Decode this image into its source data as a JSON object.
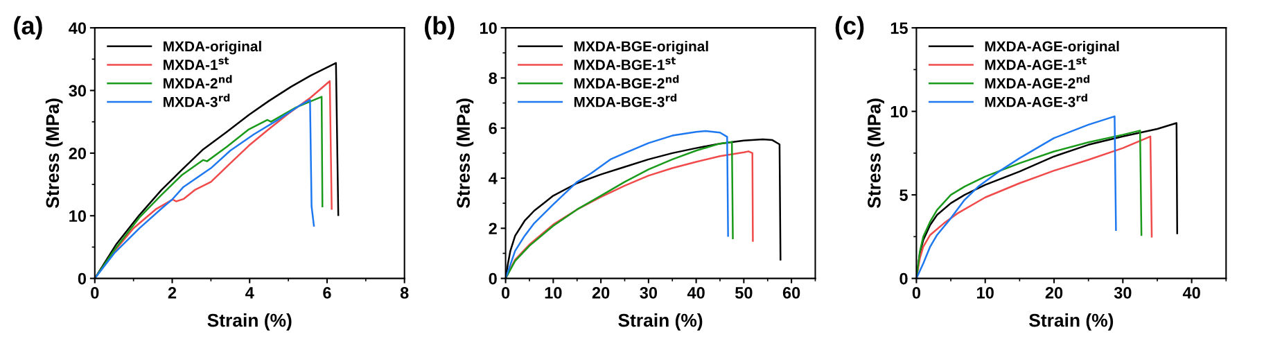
{
  "chart_data": [
    {
      "type": "line",
      "title": "(a)",
      "xlabel": "Strain (%)",
      "ylabel": "Stress (MPa)",
      "xlim": [
        0,
        8
      ],
      "ylim": [
        0,
        40
      ],
      "xticks": [
        0,
        2,
        4,
        6,
        8
      ],
      "yticks": [
        0,
        10,
        20,
        30,
        40
      ],
      "legend": "top left",
      "grid": false,
      "series": [
        {
          "name": "MXDA-original",
          "color": "#000000",
          "x": [
            0,
            0.56,
            1.15,
            1.72,
            2.26,
            2.8,
            3.41,
            3.98,
            4.49,
            5.07,
            5.58,
            6.23,
            6.29
          ],
          "values": [
            0,
            5.5,
            10.1,
            14.1,
            17.4,
            20.6,
            23.4,
            26.1,
            28.3,
            30.6,
            32.4,
            34.4,
            10.1
          ]
        },
        {
          "name": "MXDA-1$^{st}$",
          "color": "#f04a4a",
          "x": [
            0,
            0.5,
            1.0,
            1.59,
            2.01,
            2.1,
            2.3,
            2.58,
            3.0,
            3.47,
            3.98,
            4.49,
            5.0,
            5.58,
            6.07,
            6.12
          ],
          "values": [
            0,
            4.3,
            8.0,
            11.1,
            12.6,
            12.3,
            12.7,
            14.1,
            15.4,
            18.2,
            21.2,
            23.8,
            26.3,
            28.9,
            31.5,
            11.1
          ]
        },
        {
          "name": "MXDA-2$^{nd}$",
          "color": "#1a9a1a",
          "x": [
            0,
            0.5,
            1.15,
            1.7,
            2.25,
            2.8,
            2.9,
            3.41,
            3.98,
            4.46,
            4.55,
            5.2,
            5.86,
            5.88
          ],
          "values": [
            0,
            4.5,
            9.7,
            13.2,
            16.5,
            18.9,
            18.7,
            21.0,
            23.8,
            25.3,
            25.0,
            27.3,
            29.0,
            11.5
          ]
        },
        {
          "name": "MXDA-3$^{rd}$",
          "color": "#1e78f0",
          "x": [
            0,
            0.5,
            1.15,
            1.75,
            2.0,
            2.29,
            3.0,
            3.5,
            4.11,
            4.7,
            5.32,
            5.56,
            5.6,
            5.66
          ],
          "values": [
            0,
            4.0,
            8.0,
            11.3,
            12.6,
            14.6,
            17.6,
            20.4,
            23.0,
            25.2,
            27.7,
            28.5,
            11.5,
            8.4
          ]
        }
      ]
    },
    {
      "type": "line",
      "title": "(b)",
      "xlabel": "Strain (%)",
      "ylabel": "Stress (MPa)",
      "xlim": [
        0,
        65
      ],
      "ylim": [
        0,
        10
      ],
      "xticks": [
        0,
        10,
        20,
        30,
        40,
        50,
        60
      ],
      "yticks": [
        0,
        2,
        4,
        6,
        8,
        10
      ],
      "legend": "top left",
      "grid": false,
      "series": [
        {
          "name": "MXDA-BGE-original",
          "color": "#000000",
          "x": [
            0,
            0.5,
            1,
            2,
            4,
            6,
            8,
            10,
            15,
            20,
            25,
            30,
            35,
            40,
            45,
            50,
            54,
            56,
            57.5,
            57.7
          ],
          "values": [
            0,
            0.6,
            1.1,
            1.7,
            2.3,
            2.7,
            3.0,
            3.3,
            3.8,
            4.15,
            4.45,
            4.75,
            5.0,
            5.2,
            5.38,
            5.5,
            5.55,
            5.52,
            5.35,
            0.75
          ]
        },
        {
          "name": "MXDA-BGE-1$^{st}$",
          "color": "#f04a4a",
          "x": [
            0,
            2,
            5,
            10,
            15,
            20,
            25,
            30,
            35,
            40,
            45,
            50,
            51,
            51.8,
            51.9
          ],
          "values": [
            0,
            0.75,
            1.35,
            2.15,
            2.75,
            3.25,
            3.7,
            4.1,
            4.4,
            4.65,
            4.88,
            5.03,
            5.07,
            5.0,
            1.5
          ]
        },
        {
          "name": "MXDA-BGE-2$^{nd}$",
          "color": "#1a9a1a",
          "x": [
            0,
            2,
            5,
            10,
            15,
            20,
            25,
            30,
            35,
            40,
            45,
            47.5,
            47.7
          ],
          "values": [
            0,
            0.7,
            1.3,
            2.1,
            2.75,
            3.3,
            3.85,
            4.35,
            4.75,
            5.1,
            5.38,
            5.45,
            1.6
          ]
        },
        {
          "name": "MXDA-BGE-3$^{rd}$",
          "color": "#1e78f0",
          "x": [
            0,
            2,
            4,
            6,
            10,
            15,
            18,
            22,
            25,
            30,
            35,
            40,
            42,
            45,
            46.5,
            46.7
          ],
          "values": [
            0,
            1.1,
            1.7,
            2.2,
            2.95,
            3.85,
            4.2,
            4.75,
            5.0,
            5.4,
            5.7,
            5.85,
            5.88,
            5.82,
            5.65,
            1.7
          ]
        }
      ]
    },
    {
      "type": "line",
      "title": "(c)",
      "xlabel": "Strain (%)",
      "ylabel": "Stress (MPa)",
      "xlim": [
        0,
        45
      ],
      "ylim": [
        0,
        15
      ],
      "xticks": [
        0,
        10,
        20,
        30,
        40
      ],
      "yticks": [
        0,
        5,
        10,
        15
      ],
      "legend": "top left",
      "grid": false,
      "series": [
        {
          "name": "MXDA-AGE-original",
          "color": "#000000",
          "x": [
            0,
            0.5,
            1,
            2,
            3,
            5,
            7,
            10,
            15,
            20,
            25,
            30,
            35,
            37.8,
            37.9
          ],
          "values": [
            0,
            1.5,
            2.3,
            3.2,
            3.8,
            4.5,
            5.0,
            5.6,
            6.4,
            7.3,
            8.0,
            8.5,
            8.95,
            9.3,
            2.7
          ]
        },
        {
          "name": "MXDA-AGE-1$^{st}$",
          "color": "#f04a4a",
          "x": [
            0,
            0.5,
            1,
            2,
            4,
            6,
            10,
            15,
            20,
            25,
            30,
            34,
            34.2
          ],
          "values": [
            0,
            1.2,
            1.9,
            2.6,
            3.3,
            3.9,
            4.85,
            5.7,
            6.45,
            7.1,
            7.8,
            8.5,
            2.5
          ]
        },
        {
          "name": "MXDA-AGE-2$^{nd}$",
          "color": "#1a9a1a",
          "x": [
            0,
            0.5,
            1,
            2,
            3,
            5,
            7,
            10,
            15,
            20,
            25,
            30,
            32.5,
            32.7
          ],
          "values": [
            0,
            1.6,
            2.5,
            3.4,
            4.1,
            5.0,
            5.5,
            6.1,
            6.9,
            7.6,
            8.15,
            8.6,
            8.85,
            2.6
          ]
        },
        {
          "name": "MXDA-AGE-3$^{rd}$",
          "color": "#1e78f0",
          "x": [
            0,
            1,
            2,
            3,
            5,
            7,
            9,
            12,
            15,
            20,
            25,
            28.8,
            29
          ],
          "values": [
            0,
            0.9,
            1.9,
            2.6,
            3.6,
            4.7,
            5.5,
            6.4,
            7.2,
            8.4,
            9.2,
            9.7,
            2.9
          ]
        }
      ]
    }
  ]
}
